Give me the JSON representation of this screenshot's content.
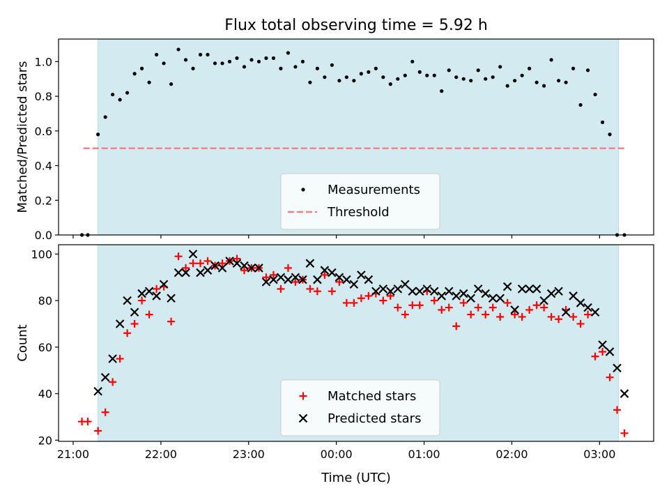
{
  "colors": {
    "observing_window": "#d3eaf0",
    "threshold": "#f08080",
    "measurements": "#000000",
    "matched": "#ff0000",
    "predicted": "#000000"
  },
  "chart_data": [
    {
      "type": "scatter",
      "title": "Flux total observing time = 5.92 h",
      "ylabel": "Matched/Predicted stars",
      "xlabel": "",
      "xlim": [
        "20:50",
        "03:37"
      ],
      "ylim": [
        0,
        1.13
      ],
      "yticks": [
        "0.0",
        "0.2",
        "0.4",
        "0.6",
        "0.8",
        "1.0"
      ],
      "xticks": [
        "21:00",
        "22:00",
        "23:00",
        "00:00",
        "01:00",
        "02:00",
        "03:00"
      ],
      "observing_window": [
        "21:17",
        "03:13"
      ],
      "threshold": {
        "value": 0.5,
        "x": [
          "21:07",
          "03:18"
        ]
      },
      "legend": {
        "location": "lower center",
        "entries": [
          "Measurements",
          "Threshold"
        ]
      },
      "series": [
        {
          "name": "Measurements",
          "marker": "dot",
          "x": [
            "21:06",
            "21:10",
            "21:17",
            "21:22",
            "21:27",
            "21:32",
            "21:37",
            "21:42",
            "21:47",
            "21:52",
            "21:57",
            "22:02",
            "22:07",
            "22:12",
            "22:17",
            "22:22",
            "22:27",
            "22:32",
            "22:37",
            "22:42",
            "22:47",
            "22:52",
            "22:57",
            "23:02",
            "23:07",
            "23:12",
            "23:17",
            "23:22",
            "23:27",
            "23:32",
            "23:37",
            "23:42",
            "23:47",
            "23:52",
            "23:57",
            "00:02",
            "00:07",
            "00:12",
            "00:17",
            "00:22",
            "00:27",
            "00:32",
            "00:37",
            "00:42",
            "00:47",
            "00:52",
            "00:57",
            "01:02",
            "01:07",
            "01:12",
            "01:17",
            "01:22",
            "01:27",
            "01:32",
            "01:37",
            "01:42",
            "01:47",
            "01:52",
            "01:57",
            "02:02",
            "02:07",
            "02:12",
            "02:17",
            "02:22",
            "02:27",
            "02:32",
            "02:37",
            "02:42",
            "02:47",
            "02:52",
            "02:57",
            "03:02",
            "03:07",
            "03:12",
            "03:17"
          ],
          "y": [
            0.0,
            0.0,
            0.58,
            0.68,
            0.81,
            0.78,
            0.82,
            0.93,
            0.96,
            0.88,
            1.04,
            0.99,
            0.87,
            1.07,
            1.01,
            0.96,
            1.04,
            1.04,
            0.99,
            0.99,
            1.0,
            1.02,
            0.97,
            1.01,
            1.0,
            1.02,
            1.02,
            0.96,
            1.05,
            0.97,
            1.0,
            0.88,
            0.96,
            0.91,
            0.98,
            0.89,
            0.91,
            0.89,
            0.93,
            0.94,
            0.96,
            0.91,
            0.87,
            0.9,
            0.92,
            1.0,
            0.94,
            0.92,
            0.92,
            0.83,
            0.95,
            0.91,
            0.9,
            0.89,
            0.95,
            0.9,
            0.91,
            0.97,
            0.86,
            0.89,
            0.92,
            0.96,
            0.88,
            0.86,
            1.01,
            0.89,
            0.88,
            0.96,
            0.75,
            0.95,
            0.81,
            0.65,
            0.58,
            0.0,
            0.0
          ]
        }
      ]
    },
    {
      "type": "scatter",
      "title": "",
      "ylabel": "Count",
      "xlabel": "Time (UTC)",
      "xlim": [
        "20:50",
        "03:37"
      ],
      "ylim": [
        19.5,
        104
      ],
      "yticks": [
        "20",
        "40",
        "60",
        "80",
        "100"
      ],
      "xticks": [
        "21:00",
        "22:00",
        "23:00",
        "00:00",
        "01:00",
        "02:00",
        "03:00"
      ],
      "observing_window": [
        "21:17",
        "03:13"
      ],
      "legend": {
        "location": "lower center",
        "entries": [
          "Matched stars",
          "Predicted stars"
        ]
      },
      "series": [
        {
          "name": "Matched stars",
          "marker": "plus",
          "x": [
            "21:06",
            "21:10",
            "21:17",
            "21:22",
            "21:27",
            "21:32",
            "21:37",
            "21:42",
            "21:47",
            "21:52",
            "21:57",
            "22:02",
            "22:07",
            "22:12",
            "22:17",
            "22:22",
            "22:27",
            "22:32",
            "22:37",
            "22:42",
            "22:47",
            "22:52",
            "22:57",
            "23:02",
            "23:07",
            "23:12",
            "23:17",
            "23:22",
            "23:27",
            "23:32",
            "23:37",
            "23:42",
            "23:47",
            "23:52",
            "23:57",
            "00:02",
            "00:07",
            "00:12",
            "00:17",
            "00:22",
            "00:27",
            "00:32",
            "00:37",
            "00:42",
            "00:47",
            "00:52",
            "00:57",
            "01:02",
            "01:07",
            "01:12",
            "01:17",
            "01:22",
            "01:27",
            "01:32",
            "01:37",
            "01:42",
            "01:47",
            "01:52",
            "01:57",
            "02:02",
            "02:07",
            "02:12",
            "02:17",
            "02:22",
            "02:27",
            "02:32",
            "02:37",
            "02:42",
            "02:47",
            "02:52",
            "02:57",
            "03:02",
            "03:07",
            "03:12",
            "03:17"
          ],
          "y": [
            28,
            28,
            24,
            32,
            45,
            55,
            66,
            70,
            80,
            74,
            85,
            86,
            71,
            99,
            94,
            96,
            96,
            97,
            95,
            96,
            97,
            98,
            93,
            94,
            94,
            90,
            91,
            85,
            94,
            88,
            89,
            85,
            84,
            91,
            84,
            88,
            79,
            79,
            81,
            82,
            83,
            80,
            82,
            77,
            74,
            78,
            78,
            84,
            80,
            76,
            77,
            69,
            79,
            74,
            77,
            74,
            77,
            73,
            79,
            74,
            73,
            76,
            78,
            77,
            73,
            72,
            76,
            73,
            70,
            74,
            56,
            58,
            47,
            33,
            23
          ]
        },
        {
          "name": "Predicted stars",
          "marker": "x",
          "x": [
            "21:17",
            "21:22",
            "21:27",
            "21:32",
            "21:37",
            "21:42",
            "21:47",
            "21:52",
            "21:57",
            "22:02",
            "22:07",
            "22:12",
            "22:17",
            "22:22",
            "22:27",
            "22:32",
            "22:37",
            "22:42",
            "22:47",
            "22:52",
            "22:57",
            "23:02",
            "23:07",
            "23:12",
            "23:17",
            "23:22",
            "23:27",
            "23:32",
            "23:37",
            "23:42",
            "23:47",
            "23:52",
            "23:57",
            "00:02",
            "00:07",
            "00:12",
            "00:17",
            "00:22",
            "00:27",
            "00:32",
            "00:37",
            "00:42",
            "00:47",
            "00:52",
            "00:57",
            "01:02",
            "01:07",
            "01:12",
            "01:17",
            "01:22",
            "01:27",
            "01:32",
            "01:37",
            "01:42",
            "01:47",
            "01:52",
            "01:57",
            "02:02",
            "02:07",
            "02:12",
            "02:17",
            "02:22",
            "02:27",
            "02:32",
            "02:37",
            "02:42",
            "02:47",
            "02:52",
            "02:57",
            "03:02",
            "03:07",
            "03:12",
            "03:17"
          ],
          "y": [
            41,
            47,
            55,
            70,
            80,
            75,
            83,
            84,
            82,
            87,
            81,
            92,
            92,
            100,
            92,
            93,
            95,
            94,
            97,
            96,
            95,
            94,
            94,
            88,
            89,
            90,
            89,
            90,
            89,
            96,
            89,
            93,
            92,
            90,
            89,
            87,
            91,
            89,
            84,
            85,
            84,
            85,
            87,
            84,
            84,
            85,
            84,
            82,
            84,
            82,
            83,
            81,
            85,
            83,
            81,
            81,
            86,
            76,
            85,
            85,
            85,
            80,
            83,
            84,
            75,
            82,
            79,
            77,
            75,
            61,
            58,
            51,
            40
          ]
        }
      ]
    }
  ]
}
